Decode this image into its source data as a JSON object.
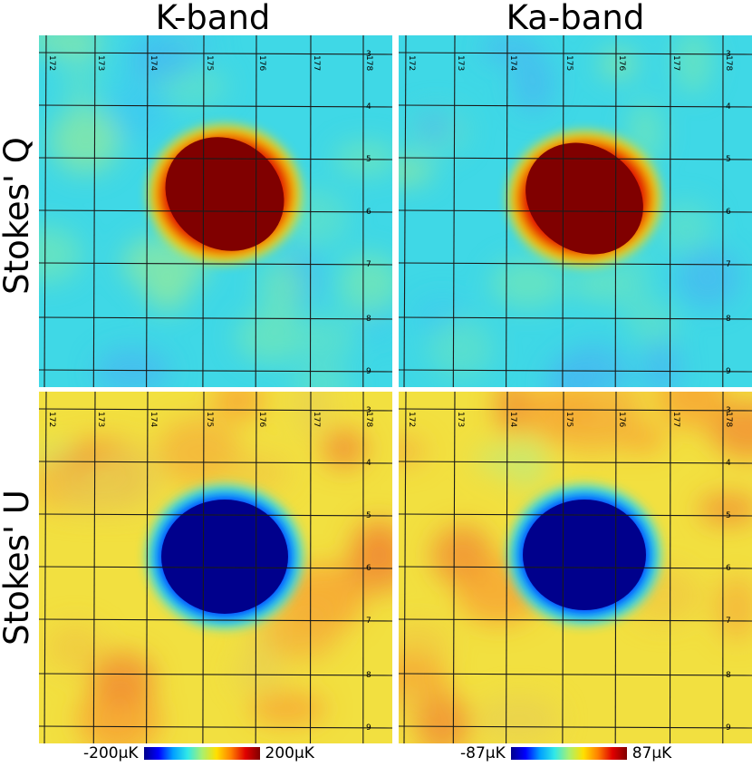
{
  "columns": [
    "K-band",
    "Ka-band"
  ],
  "rows": [
    "Stokes' Q",
    "Stokes' U"
  ],
  "lon_ticks": [
    "172",
    "173",
    "174",
    "175",
    "176",
    "177",
    "178"
  ],
  "lat_ticks": [
    "3",
    "4",
    "5",
    "6",
    "7",
    "8",
    "9"
  ],
  "colorbars": [
    {
      "min_label": "-200µK",
      "max_label": "200µK"
    },
    {
      "min_label": "-87µK",
      "max_label": "87µK"
    }
  ],
  "colors": {
    "q_background": "#3fd8e6",
    "u_background": "#f2e040",
    "q_blob": "#800000",
    "u_blob": "#00008c",
    "grid_line": "#1a1a1a"
  },
  "colormap": [
    "#00008c",
    "#0000ff",
    "#00a0ff",
    "#30e8e8",
    "#a8f070",
    "#ffe000",
    "#ff8000",
    "#e00000",
    "#800000"
  ]
}
